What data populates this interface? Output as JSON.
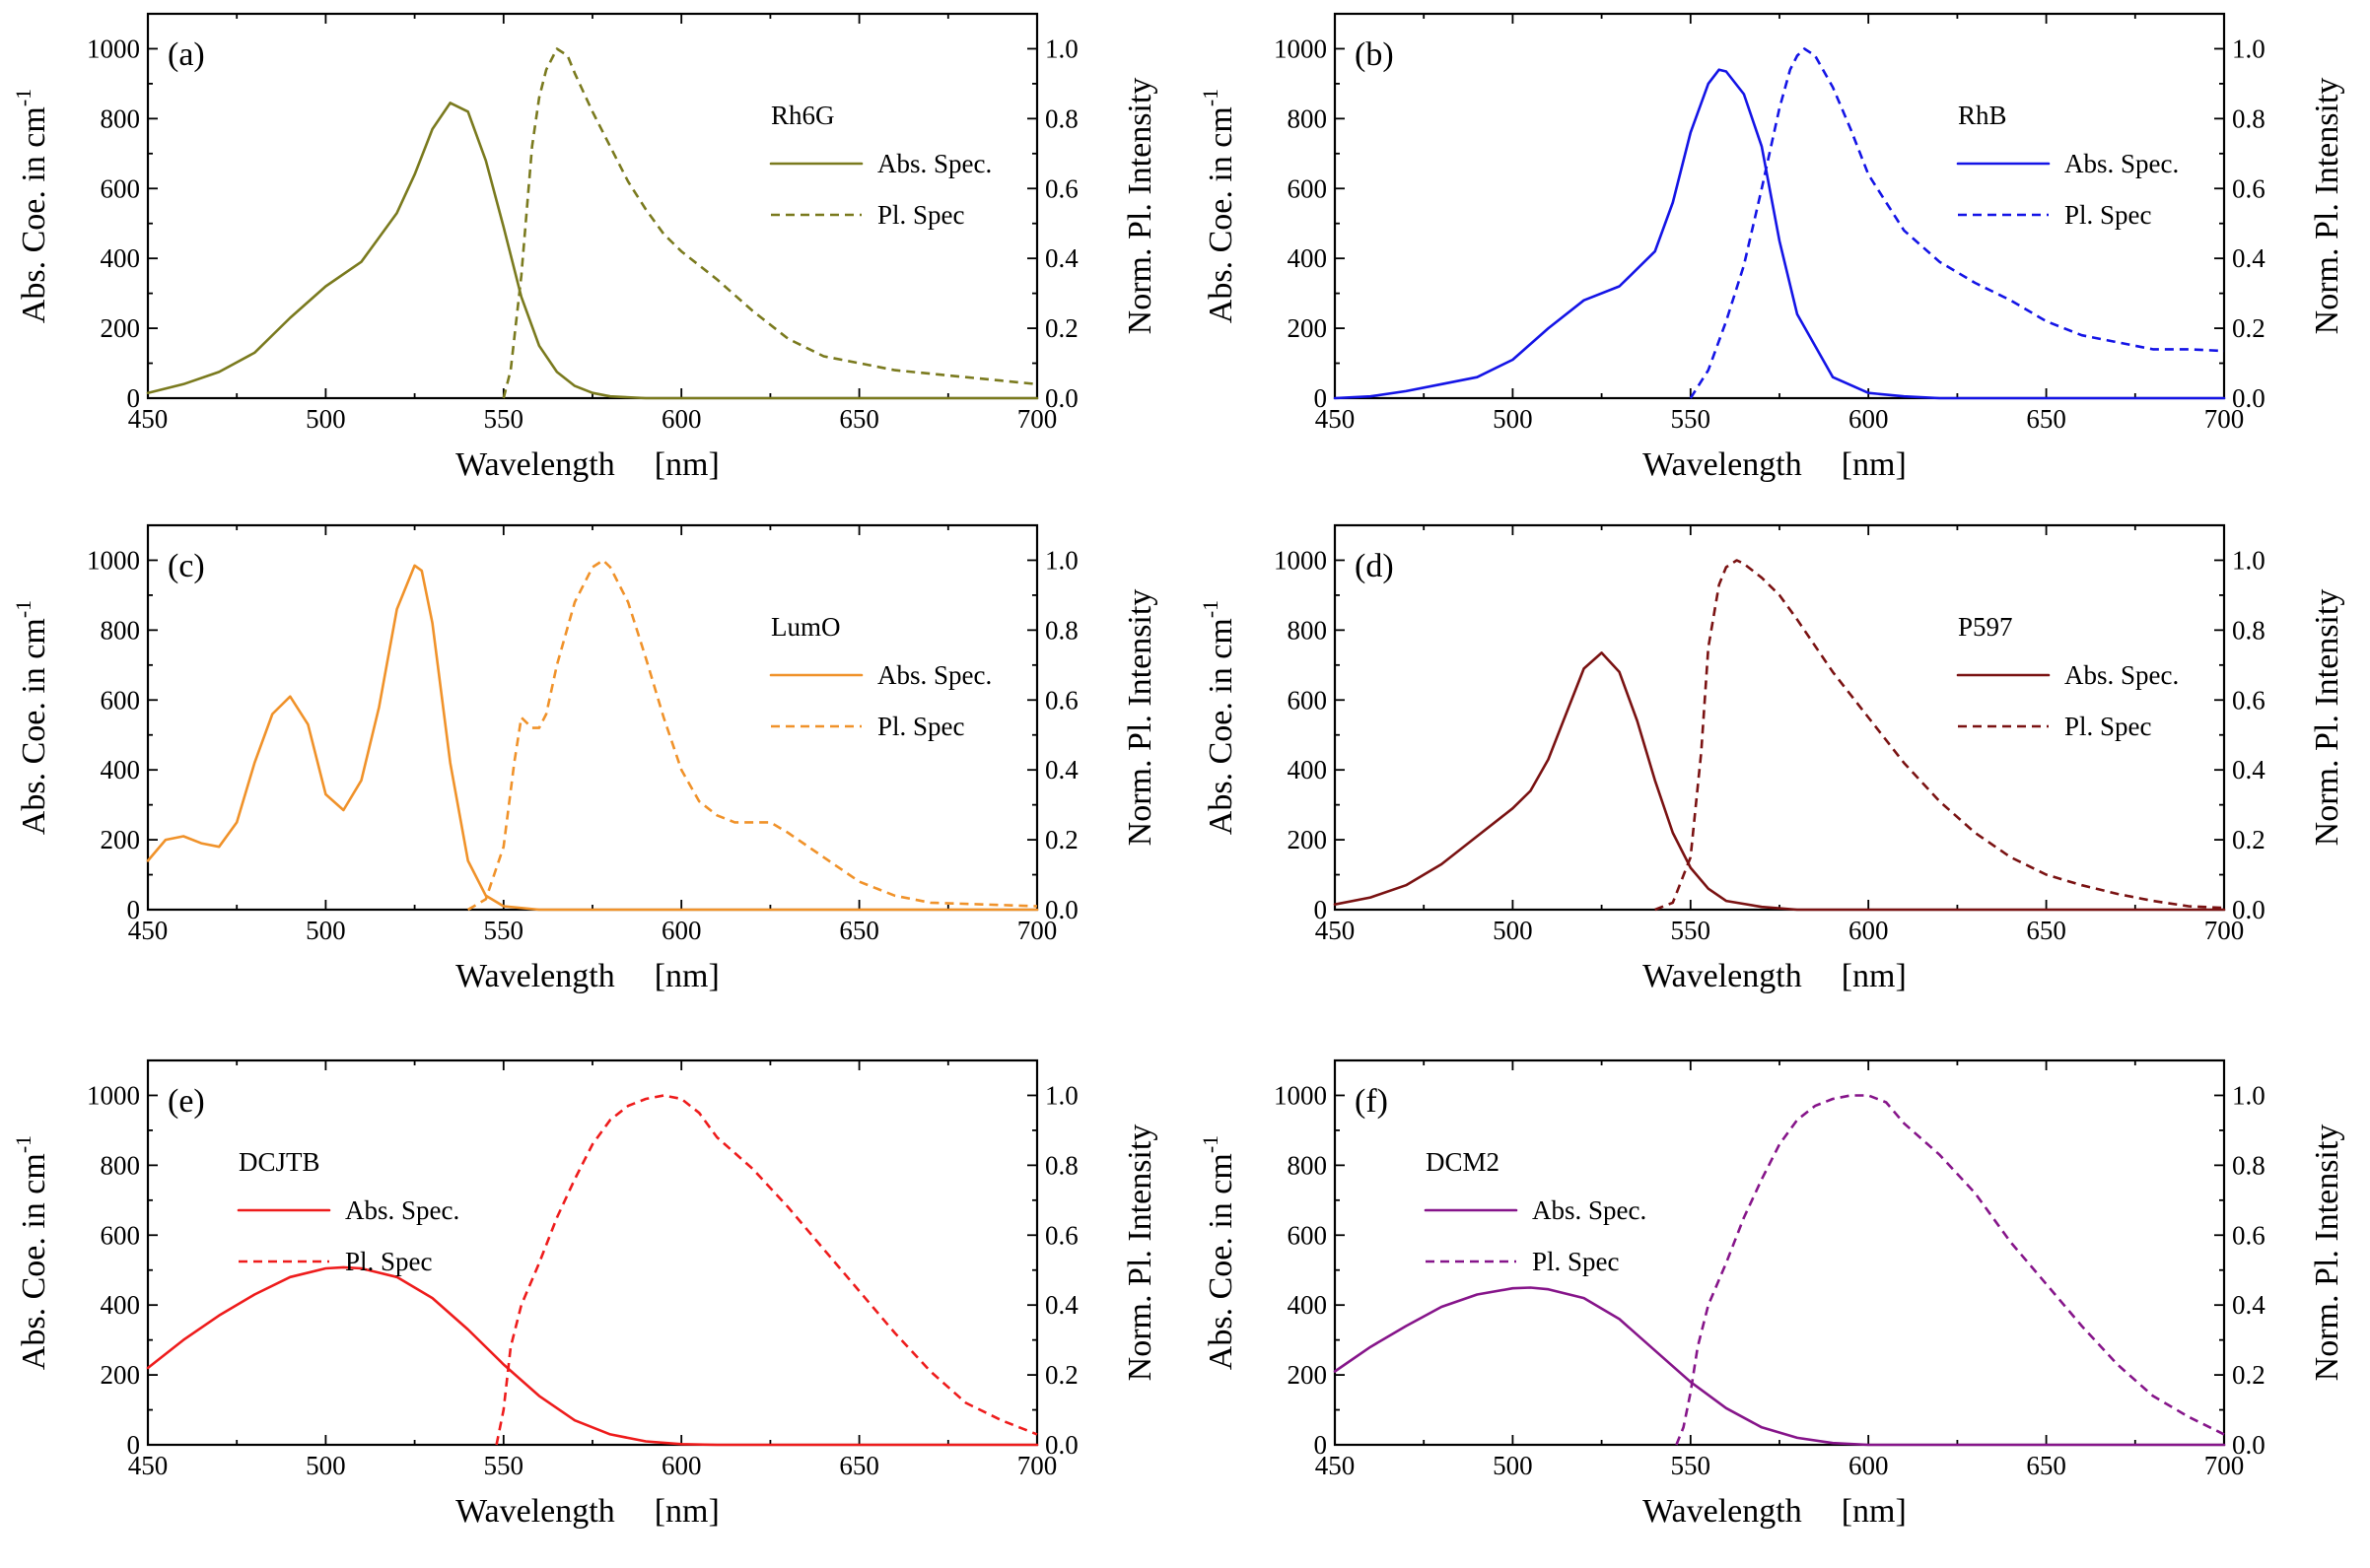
{
  "chart_data": [
    {
      "type": "line",
      "panel": "(a)",
      "dye": "Rh6G",
      "color": "#7a7a1e",
      "xlabel": "Wavelength",
      "xunit": "[nm]",
      "ylabel_left": "Abs. Coe. in cm",
      "ylabel_left_sup": "-1",
      "ylabel_right": "Norm. Pl. Intensity",
      "xlim": [
        450,
        700
      ],
      "ylim_left": [
        0,
        1100
      ],
      "ylim_right": [
        0,
        1.1
      ],
      "x_ticks": [
        "450",
        "500",
        "550",
        "600",
        "650",
        "700"
      ],
      "y_left_ticks": [
        "0",
        "200",
        "400",
        "600",
        "800",
        "1000"
      ],
      "y_right_ticks": [
        "0.0",
        "0.2",
        "0.4",
        "0.6",
        "0.8",
        "1.0"
      ],
      "legend": {
        "title": "Rh6G",
        "abs_label": "Abs. Spec.",
        "pl_label": "Pl. Spec",
        "position": "right"
      },
      "series": [
        {
          "name": "Abs. Spec.",
          "axis": "left",
          "style": "solid",
          "x": [
            450,
            460,
            470,
            480,
            490,
            500,
            510,
            520,
            525,
            530,
            535,
            540,
            545,
            550,
            555,
            560,
            565,
            570,
            575,
            580,
            590,
            600,
            700
          ],
          "y": [
            15,
            40,
            75,
            130,
            230,
            320,
            390,
            530,
            640,
            770,
            845,
            820,
            680,
            490,
            290,
            150,
            75,
            35,
            15,
            5,
            0,
            0,
            0
          ]
        },
        {
          "name": "Pl. Spec",
          "axis": "right",
          "style": "dashed",
          "x": [
            550,
            552,
            555,
            558,
            560,
            562,
            565,
            568,
            570,
            575,
            580,
            585,
            590,
            595,
            600,
            610,
            620,
            630,
            640,
            650,
            660,
            680,
            700
          ],
          "y": [
            0,
            0.08,
            0.35,
            0.72,
            0.86,
            0.94,
            1.0,
            0.98,
            0.93,
            0.82,
            0.72,
            0.62,
            0.54,
            0.47,
            0.42,
            0.34,
            0.25,
            0.17,
            0.12,
            0.1,
            0.08,
            0.06,
            0.04
          ]
        }
      ]
    },
    {
      "type": "line",
      "panel": "(b)",
      "dye": "RhB",
      "color": "#1414e6",
      "xlabel": "Wavelength",
      "xunit": "[nm]",
      "ylabel_left": "Abs. Coe. in cm",
      "ylabel_left_sup": "-1",
      "ylabel_right": "Norm. Pl. Intensity",
      "xlim": [
        450,
        700
      ],
      "ylim_left": [
        0,
        1100
      ],
      "ylim_right": [
        0,
        1.1
      ],
      "x_ticks": [
        "450",
        "500",
        "550",
        "600",
        "650",
        "700"
      ],
      "y_left_ticks": [
        "0",
        "200",
        "400",
        "600",
        "800",
        "1000"
      ],
      "y_right_ticks": [
        "0.0",
        "0.2",
        "0.4",
        "0.6",
        "0.8",
        "1.0"
      ],
      "legend": {
        "title": "RhB",
        "abs_label": "Abs. Spec.",
        "pl_label": "Pl. Spec",
        "position": "right"
      },
      "series": [
        {
          "name": "Abs. Spec.",
          "axis": "left",
          "style": "solid",
          "x": [
            450,
            460,
            470,
            480,
            490,
            500,
            510,
            520,
            530,
            540,
            545,
            550,
            555,
            558,
            560,
            565,
            570,
            575,
            580,
            590,
            600,
            610,
            620,
            700
          ],
          "y": [
            0,
            5,
            20,
            40,
            60,
            110,
            200,
            280,
            320,
            420,
            560,
            760,
            900,
            940,
            935,
            870,
            720,
            450,
            240,
            60,
            15,
            5,
            0,
            0
          ]
        },
        {
          "name": "Pl. Spec",
          "axis": "right",
          "style": "dashed",
          "x": [
            550,
            555,
            560,
            565,
            570,
            575,
            578,
            580,
            582,
            585,
            590,
            595,
            600,
            610,
            620,
            630,
            640,
            650,
            660,
            670,
            680,
            690,
            700
          ],
          "y": [
            0,
            0.08,
            0.22,
            0.38,
            0.6,
            0.83,
            0.94,
            0.98,
            1.0,
            0.98,
            0.89,
            0.77,
            0.64,
            0.48,
            0.39,
            0.33,
            0.28,
            0.22,
            0.18,
            0.16,
            0.14,
            0.14,
            0.135
          ]
        }
      ]
    },
    {
      "type": "line",
      "panel": "(c)",
      "dye": "LumO",
      "color": "#f0922a",
      "xlabel": "Wavelength",
      "xunit": "[nm]",
      "ylabel_left": "Abs. Coe. in cm",
      "ylabel_left_sup": "-1",
      "ylabel_right": "Norm. Pl. Intensity",
      "xlim": [
        450,
        700
      ],
      "ylim_left": [
        0,
        1100
      ],
      "ylim_right": [
        0,
        1.1
      ],
      "x_ticks": [
        "450",
        "500",
        "550",
        "600",
        "650",
        "700"
      ],
      "y_left_ticks": [
        "0",
        "200",
        "400",
        "600",
        "800",
        "1000"
      ],
      "y_right_ticks": [
        "0.0",
        "0.2",
        "0.4",
        "0.6",
        "0.8",
        "1.0"
      ],
      "legend": {
        "title": "LumO",
        "abs_label": "Abs. Spec.",
        "pl_label": "Pl. Spec",
        "position": "right"
      },
      "series": [
        {
          "name": "Abs. Spec.",
          "axis": "left",
          "style": "solid",
          "x": [
            450,
            455,
            460,
            465,
            470,
            475,
            480,
            485,
            490,
            495,
            500,
            505,
            510,
            515,
            520,
            525,
            527,
            530,
            535,
            540,
            545,
            550,
            560,
            700
          ],
          "y": [
            140,
            200,
            210,
            190,
            180,
            250,
            420,
            560,
            610,
            530,
            330,
            285,
            370,
            580,
            860,
            985,
            970,
            820,
            420,
            140,
            40,
            10,
            0,
            0
          ]
        },
        {
          "name": "Pl. Spec",
          "axis": "right",
          "style": "dashed",
          "x": [
            540,
            545,
            550,
            553,
            555,
            558,
            560,
            562,
            565,
            570,
            575,
            578,
            580,
            585,
            590,
            595,
            600,
            605,
            610,
            615,
            620,
            625,
            630,
            640,
            650,
            660,
            670,
            700
          ],
          "y": [
            0,
            0.03,
            0.18,
            0.42,
            0.55,
            0.52,
            0.52,
            0.56,
            0.7,
            0.88,
            0.98,
            1.0,
            0.98,
            0.88,
            0.72,
            0.55,
            0.4,
            0.31,
            0.27,
            0.25,
            0.25,
            0.25,
            0.22,
            0.15,
            0.08,
            0.04,
            0.02,
            0.01
          ]
        }
      ]
    },
    {
      "type": "line",
      "panel": "(d)",
      "dye": "P597",
      "color": "#7a1212",
      "xlabel": "Wavelength",
      "xunit": "[nm]",
      "ylabel_left": "Abs. Coe. in cm",
      "ylabel_left_sup": "-1",
      "ylabel_right": "Norm. Pl. Intensity",
      "xlim": [
        450,
        700
      ],
      "ylim_left": [
        0,
        1100
      ],
      "ylim_right": [
        0,
        1.1
      ],
      "x_ticks": [
        "450",
        "500",
        "550",
        "600",
        "650",
        "700"
      ],
      "y_left_ticks": [
        "0",
        "200",
        "400",
        "600",
        "800",
        "1000"
      ],
      "y_right_ticks": [
        "0.0",
        "0.2",
        "0.4",
        "0.6",
        "0.8",
        "1.0"
      ],
      "legend": {
        "title": "P597",
        "abs_label": "Abs. Spec.",
        "pl_label": "Pl. Spec",
        "position": "right"
      },
      "series": [
        {
          "name": "Abs. Spec.",
          "axis": "left",
          "style": "solid",
          "x": [
            450,
            460,
            470,
            480,
            490,
            500,
            505,
            510,
            515,
            520,
            525,
            530,
            535,
            540,
            545,
            550,
            555,
            560,
            570,
            580,
            700
          ],
          "y": [
            15,
            35,
            70,
            130,
            210,
            290,
            340,
            430,
            560,
            690,
            735,
            680,
            540,
            370,
            220,
            120,
            60,
            25,
            8,
            0,
            0
          ]
        },
        {
          "name": "Pl. Spec",
          "axis": "right",
          "style": "dashed",
          "x": [
            540,
            545,
            550,
            553,
            555,
            558,
            560,
            563,
            565,
            570,
            575,
            580,
            590,
            600,
            610,
            620,
            630,
            640,
            650,
            660,
            670,
            680,
            690,
            700
          ],
          "y": [
            0,
            0.02,
            0.15,
            0.45,
            0.75,
            0.93,
            0.98,
            1.0,
            0.99,
            0.95,
            0.9,
            0.83,
            0.68,
            0.55,
            0.42,
            0.31,
            0.22,
            0.15,
            0.1,
            0.07,
            0.045,
            0.025,
            0.01,
            0.005
          ]
        }
      ]
    },
    {
      "type": "line",
      "panel": "(e)",
      "dye": "DCJTB",
      "color": "#ee1c1c",
      "xlabel": "Wavelength",
      "xunit": "[nm]",
      "ylabel_left": "Abs. Coe. in cm",
      "ylabel_left_sup": "-1",
      "ylabel_right": "Norm. Pl. Intensity",
      "xlim": [
        450,
        700
      ],
      "ylim_left": [
        0,
        1100
      ],
      "ylim_right": [
        0,
        1.1
      ],
      "x_ticks": [
        "450",
        "500",
        "550",
        "600",
        "650",
        "700"
      ],
      "y_left_ticks": [
        "0",
        "200",
        "400",
        "600",
        "800",
        "1000"
      ],
      "y_right_ticks": [
        "0.0",
        "0.2",
        "0.4",
        "0.6",
        "0.8",
        "1.0"
      ],
      "legend": {
        "title": "DCJTB",
        "abs_label": "Abs. Spec.",
        "pl_label": "Pl. Spec",
        "position": "left"
      },
      "series": [
        {
          "name": "Abs. Spec.",
          "axis": "left",
          "style": "solid",
          "x": [
            450,
            460,
            470,
            480,
            490,
            500,
            505,
            510,
            520,
            530,
            540,
            550,
            560,
            570,
            580,
            590,
            600,
            610,
            700
          ],
          "y": [
            220,
            300,
            370,
            430,
            480,
            505,
            508,
            505,
            480,
            420,
            330,
            230,
            140,
            70,
            30,
            10,
            2,
            0,
            0
          ]
        },
        {
          "name": "Pl. Spec",
          "axis": "right",
          "style": "dashed",
          "x": [
            548,
            550,
            552,
            555,
            560,
            565,
            570,
            575,
            580,
            585,
            590,
            595,
            600,
            605,
            610,
            620,
            630,
            640,
            650,
            660,
            670,
            680,
            690,
            700
          ],
          "y": [
            0,
            0.1,
            0.28,
            0.4,
            0.52,
            0.65,
            0.76,
            0.86,
            0.93,
            0.97,
            0.99,
            1.0,
            0.99,
            0.95,
            0.88,
            0.79,
            0.68,
            0.56,
            0.44,
            0.32,
            0.21,
            0.12,
            0.07,
            0.03
          ]
        }
      ]
    },
    {
      "type": "line",
      "panel": "(f)",
      "dye": "DCM2",
      "color": "#86158a",
      "xlabel": "Wavelength",
      "xunit": "[nm]",
      "ylabel_left": "Abs. Coe. in cm",
      "ylabel_left_sup": "-1",
      "ylabel_right": "Norm. Pl. Intensity",
      "xlim": [
        450,
        700
      ],
      "ylim_left": [
        0,
        1100
      ],
      "ylim_right": [
        0,
        1.1
      ],
      "x_ticks": [
        "450",
        "500",
        "550",
        "600",
        "650",
        "700"
      ],
      "y_left_ticks": [
        "0",
        "200",
        "400",
        "600",
        "800",
        "1000"
      ],
      "y_right_ticks": [
        "0.0",
        "0.2",
        "0.4",
        "0.6",
        "0.8",
        "1.0"
      ],
      "legend": {
        "title": "DCM2",
        "abs_label": "Abs. Spec.",
        "pl_label": "Pl. Spec",
        "position": "left"
      },
      "series": [
        {
          "name": "Abs. Spec.",
          "axis": "left",
          "style": "solid",
          "x": [
            450,
            460,
            470,
            480,
            490,
            500,
            505,
            510,
            520,
            530,
            540,
            550,
            560,
            570,
            580,
            590,
            600,
            610,
            700
          ],
          "y": [
            210,
            280,
            340,
            395,
            430,
            448,
            450,
            445,
            420,
            360,
            270,
            180,
            105,
            50,
            20,
            5,
            0,
            0,
            0
          ]
        },
        {
          "name": "Pl. Spec",
          "axis": "right",
          "style": "dashed",
          "x": [
            546,
            548,
            550,
            552,
            555,
            560,
            565,
            570,
            575,
            580,
            585,
            590,
            595,
            600,
            605,
            610,
            620,
            630,
            640,
            650,
            660,
            670,
            680,
            690,
            700
          ],
          "y": [
            0,
            0.05,
            0.15,
            0.28,
            0.4,
            0.52,
            0.65,
            0.76,
            0.86,
            0.93,
            0.97,
            0.99,
            1.0,
            1.0,
            0.98,
            0.92,
            0.83,
            0.72,
            0.58,
            0.46,
            0.34,
            0.23,
            0.14,
            0.08,
            0.03
          ]
        }
      ]
    }
  ]
}
